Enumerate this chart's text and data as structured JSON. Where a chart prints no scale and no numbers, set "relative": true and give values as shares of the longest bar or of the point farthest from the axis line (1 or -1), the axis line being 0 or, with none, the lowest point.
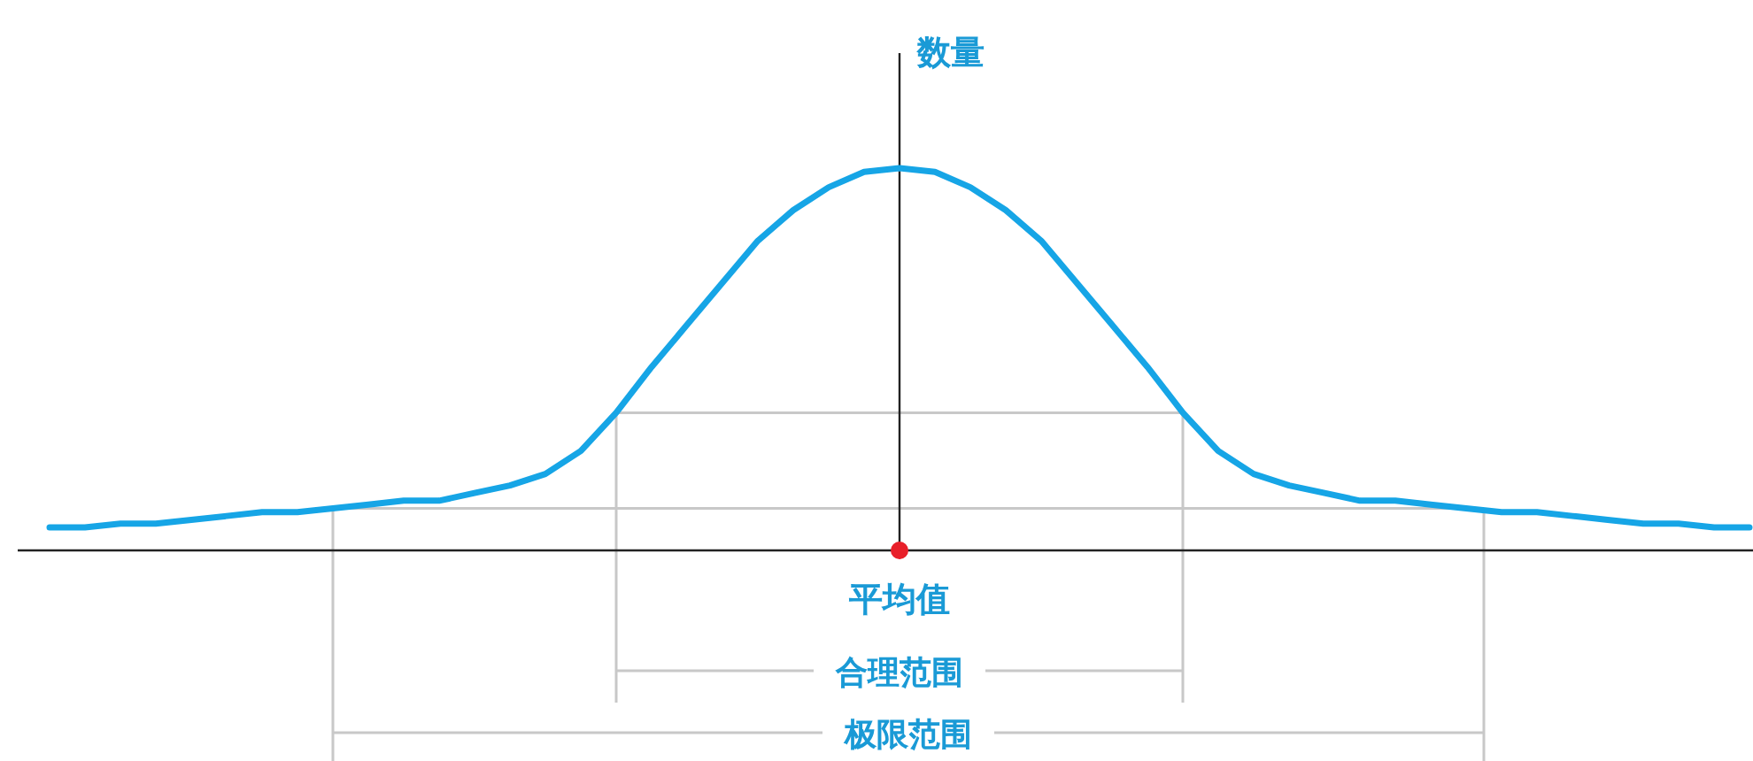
{
  "chart_data": {
    "type": "line",
    "relative": true,
    "ylabel": "数量",
    "marker": "none",
    "annotations": [
      "平均值",
      "合理范围",
      "极限范围"
    ],
    "ref_lines": [
      {
        "axis": "y",
        "value": 0.36,
        "color": "#c8c8c8"
      },
      {
        "axis": "y",
        "value": 0.11,
        "color": "#c8c8c8"
      }
    ],
    "categories": [
      null,
      null,
      null,
      null,
      null,
      null,
      null,
      null,
      null,
      null,
      null,
      null,
      null,
      null,
      null,
      null,
      null,
      null,
      null,
      null,
      null,
      null,
      null,
      null,
      null,
      null,
      null,
      null,
      null,
      null,
      null,
      null,
      null,
      null,
      null,
      null,
      null,
      null,
      null,
      null,
      null,
      null,
      null,
      null,
      null,
      null,
      null,
      null,
      null
    ],
    "series": [
      {
        "color": "#16a5e6",
        "values": [
          0.06,
          0.06,
          0.07,
          0.07,
          0.08,
          0.09,
          0.1,
          0.1,
          0.11,
          0.12,
          0.13,
          0.13,
          0.15,
          0.17,
          0.2,
          0.26,
          0.36,
          0.48,
          0.59,
          0.7,
          0.81,
          0.89,
          0.95,
          0.99,
          1,
          0.99,
          0.95,
          0.89,
          0.81,
          0.7,
          0.59,
          0.48,
          0.36,
          0.26,
          0.2,
          0.17,
          0.15,
          0.13,
          0.13,
          0.12,
          0.11,
          0.1,
          0.1,
          0.09,
          0.08,
          0.07,
          0.07,
          0.06,
          0.06
        ]
      }
    ]
  }
}
